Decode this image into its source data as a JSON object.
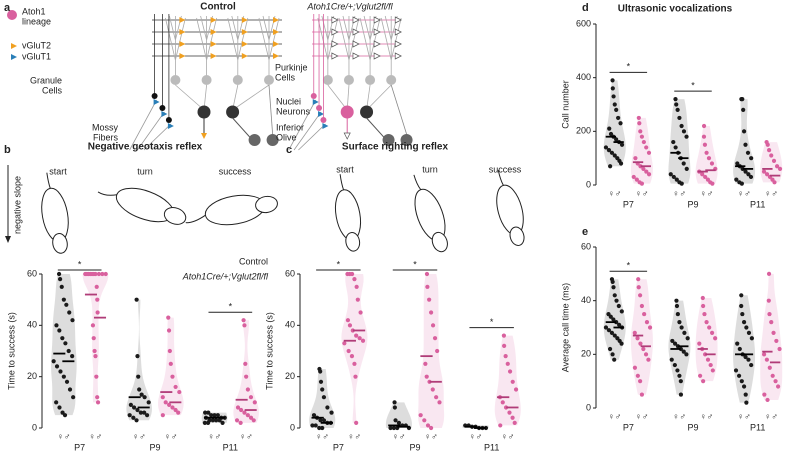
{
  "panels": [
    "a",
    "b",
    "c",
    "d",
    "e"
  ],
  "diagram": {
    "control_title": "Control",
    "mutant_title": "Atoh1Cre/+;Vglut2fl/fl",
    "lineage": [
      "Atoh1",
      "lineage"
    ],
    "vglut2": "vGluT2",
    "vglut1": "vGluT1",
    "granule": [
      "Granule",
      "Cells"
    ],
    "purkinje": [
      "Purkinje",
      "Cells"
    ],
    "nuclei": [
      "Nuclei",
      "Neurons"
    ],
    "mossy": [
      "Mossy",
      "Fibers"
    ],
    "olive": [
      "Inferior",
      "Olive"
    ]
  },
  "illustrations": {
    "geotaxis": {
      "stages": [
        "start",
        "turn",
        "success"
      ],
      "slope": "negative slope"
    },
    "righting": {
      "stages": [
        "start",
        "turn",
        "success"
      ]
    }
  },
  "chart_data": [
    {
      "type": "strip",
      "title": "Negative geotaxis reflex",
      "ylabel": "Time to success (s)",
      "categories": [
        "P7",
        "P9",
        "P11"
      ],
      "sublabel": "♀♂",
      "ylim": [
        0,
        60
      ],
      "yticks": [
        0,
        20,
        40,
        60
      ],
      "legend": "top right",
      "series": [
        {
          "name": "Control",
          "color": "#1a1a1a",
          "values": [
            [
              60,
              58,
              55,
              50,
              48,
              45,
              42,
              40,
              38,
              35,
              33,
              30,
              28,
              26,
              24,
              22,
              20,
              18,
              15,
              12,
              10,
              8,
              6,
              5
            ],
            [
              50,
              28,
              20,
              15,
              13,
              12,
              10,
              9,
              8,
              7,
              6,
              6,
              5,
              5,
              4,
              3
            ],
            [
              6,
              6,
              5,
              5,
              5,
              4,
              4,
              4,
              3,
              3,
              3,
              3,
              2,
              2,
              2
            ]
          ],
          "means": [
            29,
            12,
            4
          ],
          "medians": [
            26,
            8,
            4
          ]
        },
        {
          "name": "Atoh1Cre/+;Vglut2fl/fl",
          "color": "#d9609e",
          "values": [
            [
              60,
              60,
              60,
              60,
              60,
              60,
              60,
              60,
              60,
              60,
              55,
              50,
              45,
              40,
              35,
              30,
              28,
              20,
              12,
              10
            ],
            [
              43,
              38,
              30,
              25,
              20,
              16,
              14,
              12,
              10,
              9,
              8,
              7,
              6,
              5
            ],
            [
              42,
              40,
              25,
              20,
              15,
              12,
              10,
              8,
              7,
              6,
              5,
              4,
              3,
              3,
              2
            ]
          ],
          "means": [
            52,
            14,
            11
          ],
          "medians": [
            43,
            10,
            7
          ]
        }
      ],
      "significance": [
        {
          "category": 0,
          "label": "*"
        },
        {
          "category": 2,
          "label": "*"
        }
      ]
    },
    {
      "type": "strip",
      "title": "Surface righting reflex",
      "ylabel": "Time to success (s)",
      "categories": [
        "P7",
        "P9",
        "P11"
      ],
      "sublabel": "♀♂",
      "ylim": [
        0,
        60
      ],
      "yticks": [
        0,
        20,
        40,
        60
      ],
      "series": [
        {
          "color": "#1a1a1a",
          "values": [
            [
              23,
              22,
              18,
              15,
              12,
              8,
              6,
              5,
              4,
              3,
              3,
              2,
              2,
              1,
              1,
              0,
              0
            ],
            [
              10,
              8,
              3,
              2,
              1,
              1,
              0,
              0,
              0,
              0
            ],
            [
              1,
              1,
              0.5,
              0.5,
              0,
              0,
              0
            ]
          ],
          "means": [
            4,
            1,
            0.5
          ],
          "medians": [
            2,
            0.5,
            0
          ]
        },
        {
          "color": "#d9609e",
          "values": [
            [
              60,
              60,
              60,
              58,
              55,
              50,
              45,
              42,
              40,
              38,
              36,
              35,
              34,
              33,
              30,
              28,
              25,
              20,
              2
            ],
            [
              60,
              55,
              50,
              45,
              40,
              35,
              30,
              25,
              20,
              18,
              15,
              12,
              10,
              5,
              3,
              1,
              0
            ],
            [
              36,
              32,
              28,
              25,
              22,
              18,
              15,
              12,
              10,
              8,
              6,
              4,
              2,
              1
            ]
          ],
          "means": [
            34,
            28,
            12
          ],
          "medians": [
            38,
            18,
            8
          ]
        }
      ],
      "significance": [
        {
          "category": 0,
          "label": "*"
        },
        {
          "category": 1,
          "label": "*"
        },
        {
          "category": 2,
          "label": "*"
        }
      ]
    },
    {
      "type": "strip",
      "title": "Ultrasonic vocalizations",
      "ylabel": "Call number",
      "categories": [
        "P7",
        "P9",
        "P11"
      ],
      "sublabel": "♀♂",
      "ylim": [
        0,
        600
      ],
      "yticks": [
        0,
        200,
        400,
        600
      ],
      "series": [
        {
          "color": "#1a1a1a",
          "values": [
            [
              390,
              360,
              330,
              300,
              280,
              250,
              230,
              210,
              190,
              180,
              170,
              160,
              150,
              140,
              130,
              120,
              110,
              100,
              90,
              80,
              70
            ],
            [
              320,
              300,
              280,
              250,
              220,
              200,
              180,
              160,
              140,
              120,
              100,
              80,
              60,
              40,
              30,
              20,
              10,
              5
            ],
            [
              320,
              320,
              280,
              200,
              150,
              120,
              100,
              80,
              70,
              60,
              50,
              40,
              30,
              20,
              10,
              5
            ]
          ],
          "means": [
            180,
            120,
            70
          ],
          "medians": [
            160,
            100,
            60
          ]
        },
        {
          "color": "#d9609e",
          "values": [
            [
              250,
              230,
              200,
              180,
              160,
              140,
              120,
              100,
              80,
              70,
              60,
              50,
              40,
              30,
              20,
              10,
              5
            ],
            [
              220,
              180,
              150,
              120,
              100,
              80,
              60,
              50,
              40,
              30,
              20,
              10,
              5
            ],
            [
              160,
              150,
              130,
              110,
              90,
              70,
              60,
              50,
              40,
              30,
              20,
              10
            ]
          ],
          "means": [
            85,
            50,
            60
          ],
          "medians": [
            70,
            55,
            35
          ]
        }
      ],
      "significance": [
        {
          "category": 0,
          "label": "*"
        },
        {
          "category": 1,
          "label": "*"
        }
      ]
    },
    {
      "type": "strip",
      "ylabel": "Average call time (ms)",
      "categories": [
        "P7",
        "P9",
        "P11"
      ],
      "sublabel": "♀♂",
      "ylim": [
        0,
        60
      ],
      "yticks": [
        0,
        20,
        40,
        60
      ],
      "series": [
        {
          "color": "#1a1a1a",
          "values": [
            [
              48,
              47,
              45,
              42,
              40,
              38,
              36,
              35,
              34,
              33,
              32,
              31,
              30,
              30,
              29,
              28,
              27,
              26,
              25,
              24,
              22,
              20,
              18
            ],
            [
              40,
              38,
              35,
              32,
              30,
              28,
              26,
              25,
              24,
              23,
              22,
              21,
              20,
              18,
              16,
              14,
              12,
              10,
              5
            ],
            [
              42,
              38,
              35,
              32,
              30,
              28,
              26,
              24,
              22,
              20,
              19,
              18,
              16,
              14,
              12,
              10,
              8,
              5,
              2
            ]
          ],
          "means": [
            32,
            22,
            20
          ],
          "medians": [
            30,
            23,
            20
          ]
        },
        {
          "color": "#d9609e",
          "values": [
            [
              48,
              45,
              42,
              38,
              35,
              32,
              30,
              28,
              26,
              24,
              22,
              20,
              18,
              15,
              12,
              10,
              5
            ],
            [
              41,
              38,
              35,
              32,
              30,
              28,
              26,
              24,
              22,
              20,
              18,
              16,
              14,
              12,
              10
            ],
            [
              50,
              40,
              35,
              32,
              28,
              25,
              22,
              20,
              18,
              15,
              12,
              10,
              8,
              5,
              3
            ]
          ],
          "means": [
            27,
            22,
            21
          ],
          "medians": [
            23,
            20,
            17
          ]
        }
      ],
      "significance": [
        {
          "category": 0,
          "label": "*"
        }
      ]
    }
  ]
}
